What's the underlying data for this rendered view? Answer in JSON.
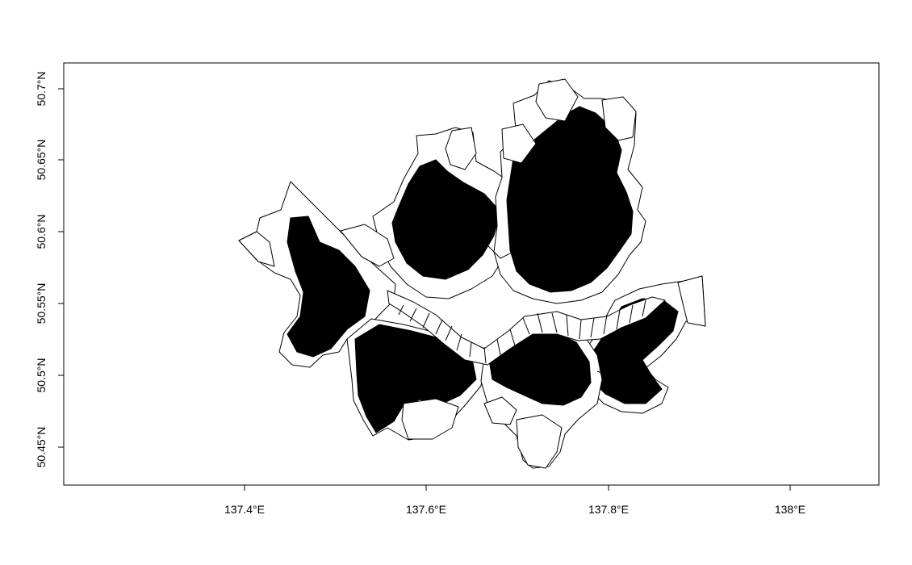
{
  "map": {
    "projection_note": "",
    "x_axis": {
      "ticks": [
        {
          "value": 137.4,
          "label": "137.4°E"
        },
        {
          "value": 137.6,
          "label": "137.6°E"
        },
        {
          "value": 137.8,
          "label": "137.8°E"
        },
        {
          "value": 138.0,
          "label": "138°E"
        }
      ]
    },
    "y_axis": {
      "ticks": [
        {
          "value": 50.45,
          "label": "50.45°N"
        },
        {
          "value": 50.5,
          "label": "50.5°N"
        },
        {
          "value": 50.55,
          "label": "50.55°N"
        },
        {
          "value": 50.6,
          "label": "50.6°N"
        },
        {
          "value": 50.65,
          "label": "50.65°N"
        },
        {
          "value": 50.7,
          "label": "50.7°N"
        }
      ]
    },
    "extent": {
      "lon": [
        137.2,
        138.1
      ],
      "lat": [
        50.42,
        50.715
      ]
    },
    "colors": {
      "boundary": "#000000",
      "background": "#ffffff"
    }
  }
}
